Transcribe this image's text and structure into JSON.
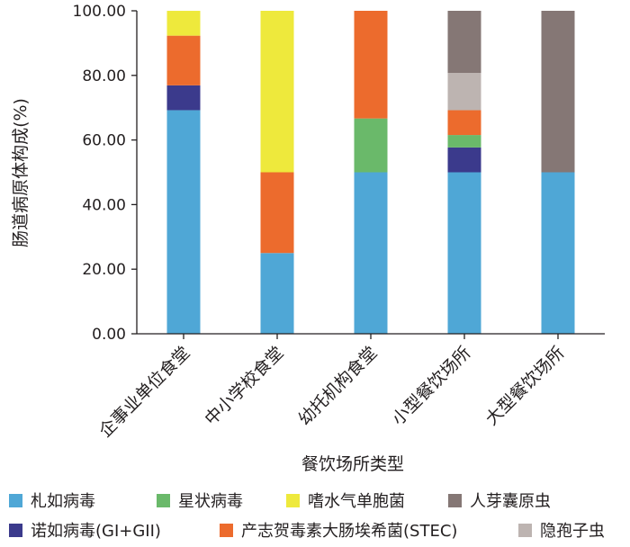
{
  "chart_data": {
    "type": "bar",
    "stacked": true,
    "xlabel": "餐饮场所类型",
    "ylabel": "肠道病原体构成(%)",
    "ylim": [
      0,
      100
    ],
    "yticks": [
      "0.00",
      "20.00",
      "40.00",
      "60.00",
      "80.00",
      "100.00"
    ],
    "grid": false,
    "legend_position": "bottom",
    "categories": [
      "企事业单位食堂",
      "中小学校食堂",
      "幼托机构食堂",
      "小型餐饮场所",
      "大型餐饮场所"
    ],
    "series": [
      {
        "name": "札如病毒",
        "color": "#4fa7d6",
        "values": [
          69.23,
          25.0,
          50.0,
          50.0,
          50.0
        ]
      },
      {
        "name": "诺如病毒(GI+GII)",
        "color": "#3b3a8c",
        "values": [
          7.69,
          0,
          0,
          7.69,
          0
        ]
      },
      {
        "name": "星状病毒",
        "color": "#6ab96a",
        "values": [
          0,
          0,
          16.67,
          3.85,
          0
        ]
      },
      {
        "name": "产志贺毒素大肠埃希菌(STEC)",
        "color": "#ec6b2d",
        "values": [
          15.38,
          25.0,
          33.33,
          7.69,
          0
        ]
      },
      {
        "name": "隐孢子虫",
        "color": "#bdb4b1",
        "values": [
          0,
          0,
          0,
          11.54,
          0
        ]
      },
      {
        "name": "人芽囊原虫",
        "color": "#857775",
        "values": [
          0,
          0,
          0,
          19.23,
          50.0
        ]
      },
      {
        "name": "嗜水气单胞菌",
        "color": "#eee93c",
        "values": [
          7.69,
          50.0,
          0,
          0,
          0
        ]
      }
    ],
    "legend_order": [
      "札如病毒",
      "星状病毒",
      "嗜水气单胞菌",
      "人芽囊原虫",
      "诺如病毒(GI+GII)",
      "产志贺毒素大肠埃希菌(STEC)",
      "隐孢子虫"
    ]
  }
}
